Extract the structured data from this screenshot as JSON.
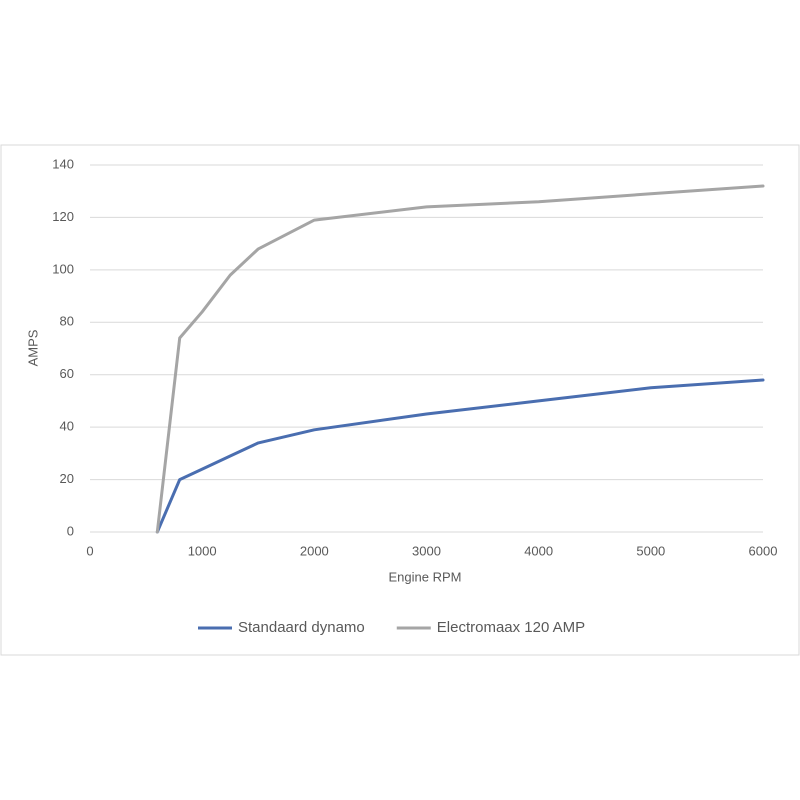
{
  "chart_data": {
    "type": "line",
    "x_label": "Engine RPM",
    "y_label": "AMPS",
    "x": [
      600,
      800,
      1000,
      1250,
      1500,
      2000,
      3000,
      4000,
      5000,
      6000
    ],
    "series": [
      {
        "name": "Standaard dynamo",
        "color": "#4a6eb0",
        "values": [
          0,
          20,
          24,
          29,
          34,
          39,
          45,
          50,
          55,
          58
        ]
      },
      {
        "name": "Electromaax 120 AMP",
        "color": "#a5a5a5",
        "values": [
          0,
          74,
          84,
          98,
          108,
          119,
          124,
          126,
          129,
          132
        ]
      }
    ],
    "xlim": [
      0,
      6000
    ],
    "xticks": [
      0,
      1000,
      2000,
      3000,
      4000,
      5000,
      6000
    ],
    "ylim": [
      0,
      140
    ],
    "yticks": [
      0,
      20,
      40,
      60,
      80,
      100,
      120,
      140
    ],
    "grid": true,
    "legend": "bottom"
  }
}
